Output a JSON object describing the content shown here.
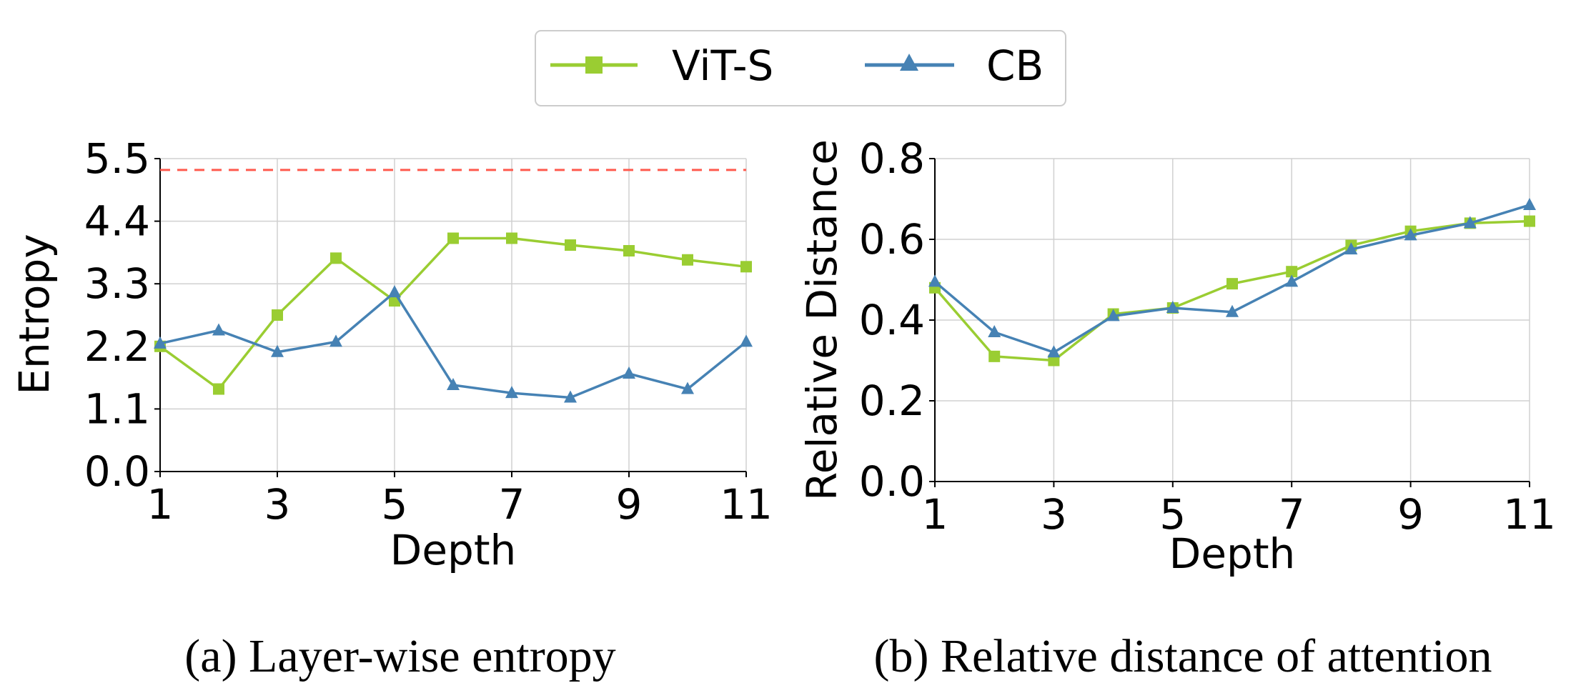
{
  "legend": {
    "entries": [
      {
        "label": "ViT-S",
        "color": "#9acd32",
        "marker": "square"
      },
      {
        "label": "CB",
        "color": "#4682b4",
        "marker": "triangle"
      }
    ]
  },
  "chart_data": [
    {
      "type": "line",
      "caption": "(a) Layer-wise entropy",
      "xlabel": "Depth",
      "ylabel": "Entropy",
      "x": [
        1,
        2,
        3,
        4,
        5,
        6,
        7,
        8,
        9,
        10,
        11
      ],
      "xticks": [
        1,
        3,
        5,
        7,
        9,
        11
      ],
      "xticklabels": [
        "1",
        "3",
        "5",
        "7",
        "9",
        "11"
      ],
      "xlim": [
        1,
        11
      ],
      "yticks": [
        0.0,
        1.1,
        2.2,
        3.3,
        4.4,
        5.5
      ],
      "yticklabels": [
        "0.0",
        "1.1",
        "2.2",
        "3.3",
        "4.4",
        "5.5"
      ],
      "ylim": [
        0,
        5.5
      ],
      "grid": true,
      "reference_line": {
        "y": 5.3,
        "style": "dashed",
        "color": "#ff5a4e"
      },
      "series": [
        {
          "name": "ViT-S",
          "color": "#9acd32",
          "marker": "square",
          "values": [
            2.2,
            1.45,
            2.75,
            3.75,
            3.0,
            4.1,
            4.1,
            3.98,
            3.88,
            3.72,
            3.6
          ]
        },
        {
          "name": "CB",
          "color": "#4682b4",
          "marker": "triangle",
          "values": [
            2.25,
            2.48,
            2.1,
            2.28,
            3.15,
            1.52,
            1.38,
            1.3,
            1.72,
            1.45,
            2.28
          ]
        }
      ]
    },
    {
      "type": "line",
      "caption": "(b) Relative distance of attention",
      "xlabel": "Depth",
      "ylabel": "Relative Distance",
      "x": [
        1,
        2,
        3,
        4,
        5,
        6,
        7,
        8,
        9,
        10,
        11
      ],
      "xticks": [
        1,
        3,
        5,
        7,
        9,
        11
      ],
      "xticklabels": [
        "1",
        "3",
        "5",
        "7",
        "9",
        "11"
      ],
      "xlim": [
        1,
        11
      ],
      "yticks": [
        0.0,
        0.2,
        0.4,
        0.6,
        0.8
      ],
      "yticklabels": [
        "0.0",
        "0.2",
        "0.4",
        "0.6",
        "0.8"
      ],
      "ylim": [
        0,
        0.8
      ],
      "grid": true,
      "series": [
        {
          "name": "ViT-S",
          "color": "#9acd32",
          "marker": "square",
          "values": [
            0.48,
            0.31,
            0.3,
            0.415,
            0.43,
            0.49,
            0.52,
            0.585,
            0.62,
            0.64,
            0.645
          ]
        },
        {
          "name": "CB",
          "color": "#4682b4",
          "marker": "triangle",
          "values": [
            0.495,
            0.37,
            0.32,
            0.41,
            0.43,
            0.42,
            0.495,
            0.575,
            0.61,
            0.64,
            0.685
          ]
        }
      ]
    }
  ]
}
